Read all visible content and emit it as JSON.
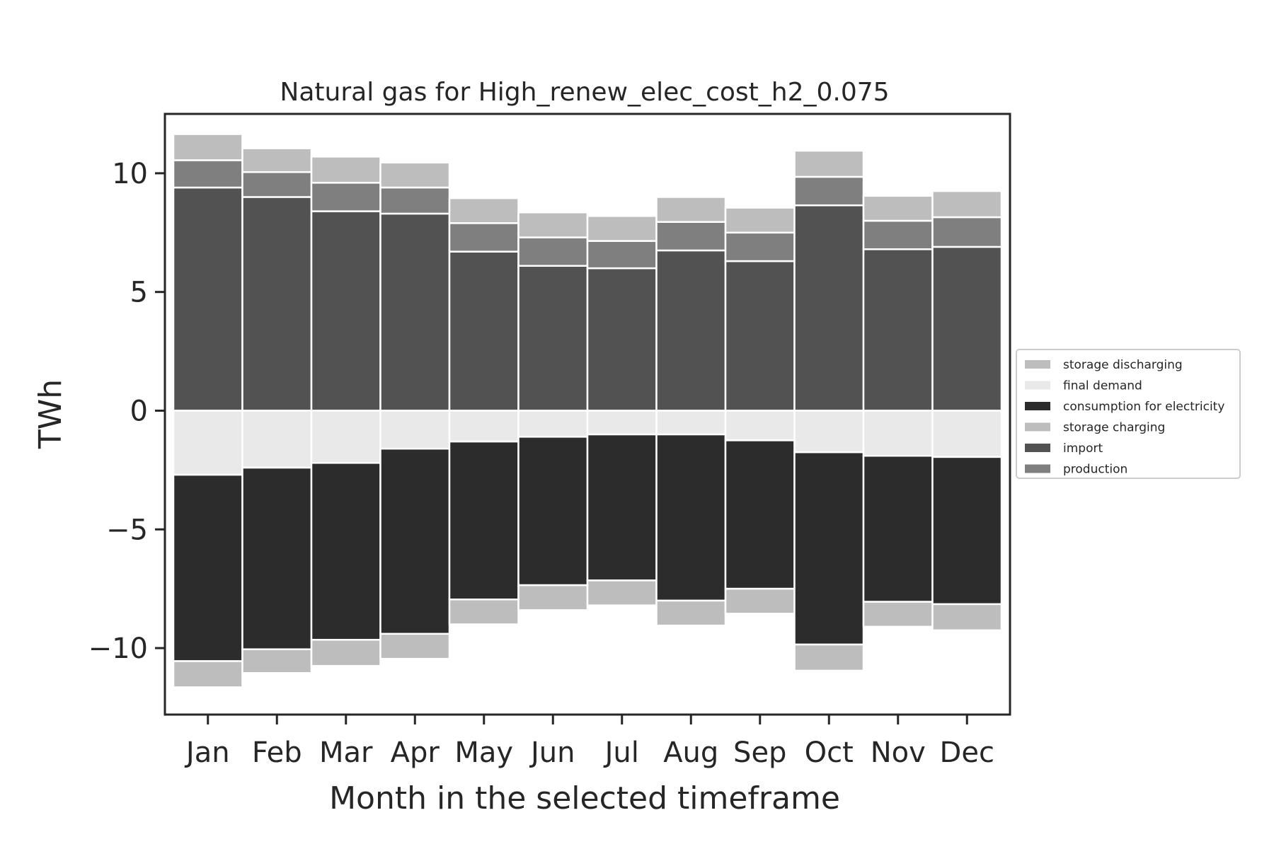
{
  "chart_data": {
    "type": "bar",
    "stacked": true,
    "title": "Natural gas for High_renew_elec_cost_h2_0.075",
    "xlabel": "Month in the selected timeframe",
    "ylabel": "TWh",
    "ylim": [
      -12.8,
      12.5
    ],
    "yticks": [
      10,
      5,
      0,
      -5,
      -10
    ],
    "ytick_labels": [
      "10",
      "5",
      "0",
      "−5",
      "−10"
    ],
    "grid": false,
    "legend_position": "center-right outside",
    "categories": [
      "Jan",
      "Feb",
      "Mar",
      "Apr",
      "May",
      "Jun",
      "Jul",
      "Aug",
      "Sep",
      "Oct",
      "Nov",
      "Dec"
    ],
    "series": [
      {
        "name": "import",
        "color": "#525252",
        "direction": "positive",
        "values": [
          9.4,
          9.0,
          8.4,
          8.3,
          6.7,
          6.1,
          6.0,
          6.75,
          6.3,
          8.65,
          6.8,
          6.9
        ]
      },
      {
        "name": "production",
        "color": "#7f7f7f",
        "direction": "positive",
        "values": [
          1.15,
          1.05,
          1.2,
          1.1,
          1.2,
          1.2,
          1.15,
          1.2,
          1.2,
          1.2,
          1.2,
          1.25
        ]
      },
      {
        "name": "storage discharging",
        "color": "#bdbdbd",
        "direction": "positive",
        "values": [
          1.1,
          1.0,
          1.1,
          1.05,
          1.05,
          1.05,
          1.05,
          1.05,
          1.05,
          1.1,
          1.05,
          1.1
        ]
      },
      {
        "name": "final demand",
        "color": "#e9e9e9",
        "direction": "negative",
        "values": [
          -2.7,
          -2.4,
          -2.2,
          -1.6,
          -1.3,
          -1.1,
          -1.0,
          -1.0,
          -1.25,
          -1.75,
          -1.9,
          -1.95
        ]
      },
      {
        "name": "consumption for electricity",
        "color": "#2c2c2c",
        "direction": "negative",
        "values": [
          -7.85,
          -7.65,
          -7.45,
          -7.8,
          -6.65,
          -6.25,
          -6.15,
          -7.0,
          -6.25,
          -8.1,
          -6.15,
          -6.2
        ]
      },
      {
        "name": "storage charging",
        "color": "#bdbdbd",
        "direction": "negative",
        "values": [
          -1.1,
          -1.0,
          -1.1,
          -1.05,
          -1.05,
          -1.05,
          -1.05,
          -1.05,
          -1.05,
          -1.1,
          -1.05,
          -1.1
        ]
      }
    ],
    "legend_entries": [
      {
        "label": "storage discharging",
        "color": "#bdbdbd"
      },
      {
        "label": "final demand",
        "color": "#e9e9e9"
      },
      {
        "label": "consumption for electricity",
        "color": "#2c2c2c"
      },
      {
        "label": "storage charging",
        "color": "#bdbdbd"
      },
      {
        "label": "import",
        "color": "#525252"
      },
      {
        "label": "production",
        "color": "#7f7f7f"
      }
    ]
  }
}
